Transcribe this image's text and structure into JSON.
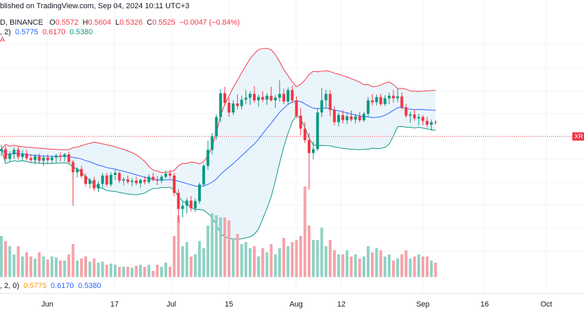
{
  "header": {
    "published": "blished on TradingView.com, Sep 04, 2024 10:11 UTC+3",
    "symbol_line": "D, BINANCE",
    "o_label": "O",
    "o_value": "0.5572",
    "h_label": "H",
    "h_value": "0.5604",
    "l_label": "L",
    "l_value": "0.5326",
    "c_label": "C",
    "c_value": "0.5525",
    "change": "−0.0047 (−0.84%)",
    "bb_params": ", 2)",
    "bb_basis": "0.5775",
    "bb_upper": "0.6170",
    "bb_lower": "0.5380",
    "marker": "A",
    "bb2_params": ", 2, 0)",
    "bb2_basis": "0.5775",
    "bb2_upper": "0.6170",
    "bb2_lower": "0.5380"
  },
  "price_tag": "XR",
  "colors": {
    "up": "#089981",
    "down": "#F23645",
    "vol_up": "#8FD1C4",
    "vol_down": "#F5A3A8",
    "basis": "#2962FF",
    "upper_band": "#F23645",
    "lower_band": "#089981",
    "band_fill": "#EAF4FB",
    "grid": "#F0F3FA",
    "axis_text": "#131722"
  },
  "chart_data": {
    "type": "candlestick",
    "interval": "1D",
    "x_tick_labels": [
      "Jun",
      "17",
      "Jul",
      "15",
      "Aug",
      "12",
      "Sep",
      "16",
      "Oct"
    ],
    "grid": true,
    "candles": [
      [
        0.545,
        0.555,
        0.537,
        0.548,
        40
      ],
      [
        0.548,
        0.553,
        0.53,
        0.533,
        35
      ],
      [
        0.533,
        0.545,
        0.528,
        0.54,
        30
      ],
      [
        0.54,
        0.551,
        0.533,
        0.547,
        22
      ],
      [
        0.547,
        0.552,
        0.532,
        0.536,
        30
      ],
      [
        0.536,
        0.546,
        0.53,
        0.541,
        20
      ],
      [
        0.541,
        0.547,
        0.531,
        0.534,
        24
      ],
      [
        0.534,
        0.54,
        0.527,
        0.531,
        20
      ],
      [
        0.531,
        0.54,
        0.524,
        0.537,
        18
      ],
      [
        0.537,
        0.541,
        0.526,
        0.53,
        24
      ],
      [
        0.53,
        0.537,
        0.522,
        0.535,
        20
      ],
      [
        0.535,
        0.54,
        0.526,
        0.531,
        17
      ],
      [
        0.531,
        0.538,
        0.525,
        0.535,
        20
      ],
      [
        0.535,
        0.541,
        0.527,
        0.538,
        19
      ],
      [
        0.538,
        0.543,
        0.529,
        0.536,
        16
      ],
      [
        0.536,
        0.542,
        0.529,
        0.54,
        16
      ],
      [
        0.54,
        0.544,
        0.526,
        0.528,
        22
      ],
      [
        0.528,
        0.531,
        0.46,
        0.512,
        32
      ],
      [
        0.512,
        0.52,
        0.504,
        0.517,
        16
      ],
      [
        0.517,
        0.522,
        0.503,
        0.506,
        18
      ],
      [
        0.506,
        0.51,
        0.49,
        0.494,
        20
      ],
      [
        0.494,
        0.503,
        0.487,
        0.5,
        15
      ],
      [
        0.5,
        0.505,
        0.483,
        0.487,
        18
      ],
      [
        0.487,
        0.498,
        0.481,
        0.494,
        14
      ],
      [
        0.494,
        0.511,
        0.488,
        0.507,
        15
      ],
      [
        0.507,
        0.511,
        0.49,
        0.493,
        12
      ],
      [
        0.493,
        0.512,
        0.49,
        0.508,
        13
      ],
      [
        0.508,
        0.516,
        0.5,
        0.511,
        12
      ],
      [
        0.511,
        0.513,
        0.495,
        0.499,
        10
      ],
      [
        0.499,
        0.504,
        0.492,
        0.501,
        10
      ],
      [
        0.501,
        0.507,
        0.494,
        0.497,
        10
      ],
      [
        0.497,
        0.503,
        0.49,
        0.499,
        9
      ],
      [
        0.499,
        0.505,
        0.492,
        0.495,
        11
      ],
      [
        0.495,
        0.502,
        0.488,
        0.5,
        12
      ],
      [
        0.5,
        0.506,
        0.493,
        0.497,
        10
      ],
      [
        0.497,
        0.509,
        0.494,
        0.505,
        12
      ],
      [
        0.505,
        0.511,
        0.498,
        0.5,
        6
      ],
      [
        0.5,
        0.506,
        0.492,
        0.499,
        12
      ],
      [
        0.499,
        0.508,
        0.495,
        0.505,
        10
      ],
      [
        0.505,
        0.515,
        0.502,
        0.51,
        14
      ],
      [
        0.51,
        0.516,
        0.503,
        0.507,
        10
      ],
      [
        0.507,
        0.511,
        0.475,
        0.48,
        40
      ],
      [
        0.48,
        0.486,
        0.434,
        0.455,
        60
      ],
      [
        0.455,
        0.466,
        0.442,
        0.46,
        30
      ],
      [
        0.46,
        0.472,
        0.448,
        0.468,
        34
      ],
      [
        0.468,
        0.475,
        0.451,
        0.456,
        20
      ],
      [
        0.456,
        0.471,
        0.45,
        0.467,
        22
      ],
      [
        0.467,
        0.496,
        0.463,
        0.493,
        35
      ],
      [
        0.493,
        0.525,
        0.49,
        0.522,
        28
      ],
      [
        0.522,
        0.561,
        0.516,
        0.547,
        50
      ],
      [
        0.547,
        0.573,
        0.54,
        0.568,
        62
      ],
      [
        0.568,
        0.602,
        0.563,
        0.598,
        60
      ],
      [
        0.598,
        0.641,
        0.59,
        0.635,
        58
      ],
      [
        0.635,
        0.645,
        0.616,
        0.62,
        58
      ],
      [
        0.62,
        0.628,
        0.598,
        0.605,
        55
      ],
      [
        0.605,
        0.624,
        0.601,
        0.619,
        38
      ],
      [
        0.619,
        0.633,
        0.61,
        0.615,
        42
      ],
      [
        0.615,
        0.631,
        0.61,
        0.625,
        32
      ],
      [
        0.625,
        0.64,
        0.618,
        0.628,
        34
      ],
      [
        0.628,
        0.638,
        0.617,
        0.634,
        28
      ],
      [
        0.634,
        0.646,
        0.62,
        0.624,
        30
      ],
      [
        0.624,
        0.633,
        0.614,
        0.629,
        20
      ],
      [
        0.629,
        0.638,
        0.621,
        0.625,
        28
      ],
      [
        0.625,
        0.635,
        0.617,
        0.631,
        24
      ],
      [
        0.631,
        0.645,
        0.622,
        0.624,
        32
      ],
      [
        0.624,
        0.632,
        0.612,
        0.628,
        22
      ],
      [
        0.628,
        0.655,
        0.622,
        0.634,
        28
      ],
      [
        0.634,
        0.642,
        0.618,
        0.622,
        38
      ],
      [
        0.622,
        0.644,
        0.617,
        0.64,
        30
      ],
      [
        0.64,
        0.647,
        0.62,
        0.624,
        34
      ],
      [
        0.624,
        0.63,
        0.596,
        0.6,
        36
      ],
      [
        0.6,
        0.612,
        0.57,
        0.58,
        40
      ],
      [
        0.58,
        0.59,
        0.558,
        0.562,
        88
      ],
      [
        0.562,
        0.573,
        0.485,
        0.542,
        50
      ],
      [
        0.542,
        0.56,
        0.532,
        0.548,
        36
      ],
      [
        0.548,
        0.612,
        0.545,
        0.605,
        36
      ],
      [
        0.605,
        0.643,
        0.598,
        0.624,
        48
      ],
      [
        0.624,
        0.64,
        0.612,
        0.634,
        30
      ],
      [
        0.634,
        0.64,
        0.599,
        0.609,
        36
      ],
      [
        0.609,
        0.615,
        0.585,
        0.59,
        26
      ],
      [
        0.59,
        0.605,
        0.583,
        0.601,
        22
      ],
      [
        0.601,
        0.609,
        0.588,
        0.593,
        22
      ],
      [
        0.593,
        0.604,
        0.587,
        0.599,
        26
      ],
      [
        0.599,
        0.608,
        0.591,
        0.594,
        20
      ],
      [
        0.594,
        0.603,
        0.588,
        0.599,
        22
      ],
      [
        0.599,
        0.606,
        0.59,
        0.593,
        18
      ],
      [
        0.593,
        0.606,
        0.59,
        0.603,
        20
      ],
      [
        0.603,
        0.629,
        0.599,
        0.624,
        30
      ],
      [
        0.624,
        0.634,
        0.616,
        0.621,
        24
      ],
      [
        0.621,
        0.633,
        0.616,
        0.629,
        28
      ],
      [
        0.629,
        0.634,
        0.615,
        0.618,
        26
      ],
      [
        0.618,
        0.632,
        0.615,
        0.627,
        20
      ],
      [
        0.627,
        0.636,
        0.618,
        0.631,
        22
      ],
      [
        0.631,
        0.64,
        0.62,
        0.627,
        16
      ],
      [
        0.627,
        0.642,
        0.621,
        0.63,
        18
      ],
      [
        0.63,
        0.636,
        0.61,
        0.613,
        22
      ],
      [
        0.613,
        0.618,
        0.597,
        0.6,
        26
      ],
      [
        0.6,
        0.606,
        0.589,
        0.602,
        18
      ],
      [
        0.602,
        0.61,
        0.592,
        0.596,
        20
      ],
      [
        0.596,
        0.603,
        0.585,
        0.598,
        22
      ],
      [
        0.598,
        0.601,
        0.585,
        0.592,
        20
      ],
      [
        0.592,
        0.598,
        0.582,
        0.586,
        20
      ],
      [
        0.586,
        0.594,
        0.577,
        0.59,
        16
      ],
      [
        0.59,
        0.593,
        0.586,
        0.589,
        14
      ]
    ]
  }
}
